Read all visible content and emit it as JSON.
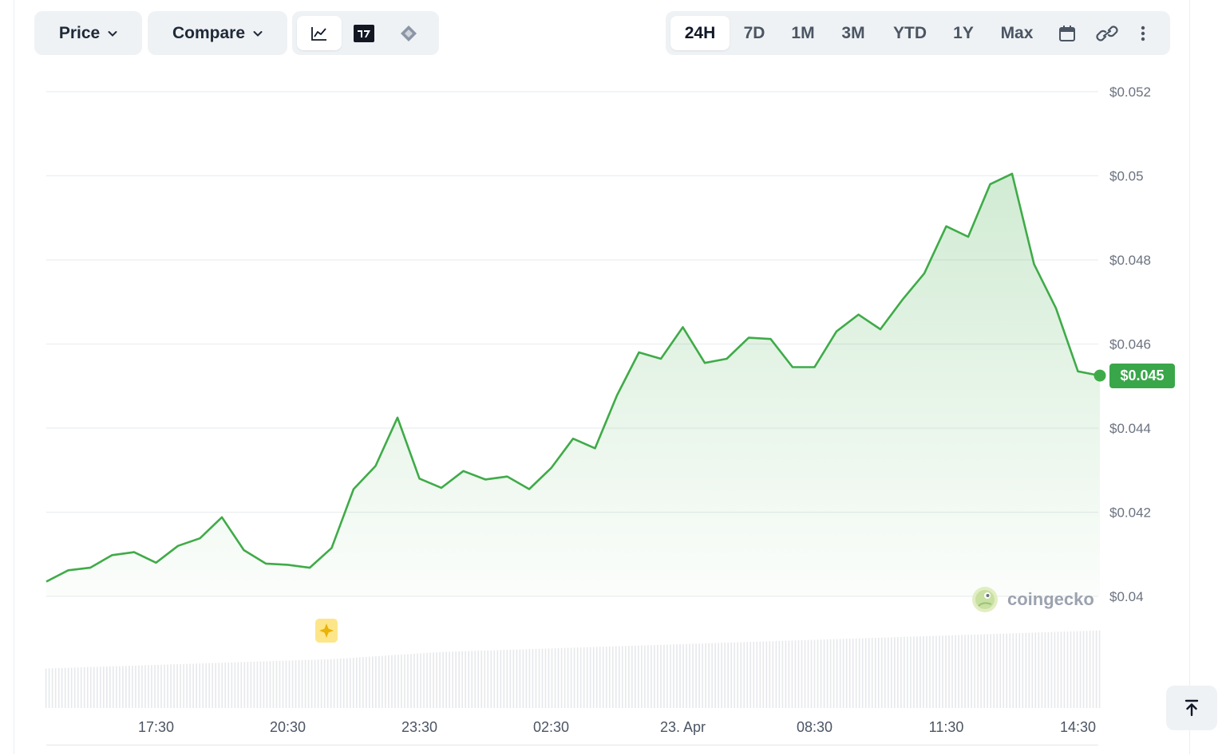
{
  "controls": {
    "price_label": "Price",
    "compare_label": "Compare",
    "ranges": [
      "24H",
      "7D",
      "1M",
      "3M",
      "YTD",
      "1Y",
      "Max"
    ],
    "active_range": "24H"
  },
  "current_price": "$0.045",
  "brand": "coingecko",
  "colors": {
    "line": "#3fab48",
    "badge": "#3aa64a",
    "grid": "#eceef1",
    "volume": "#e6e8eb"
  },
  "icons": {
    "chart_types": [
      "line-chart-icon",
      "tradingview-icon",
      "candlestick-icon"
    ],
    "tools": [
      "calendar-icon",
      "link-icon",
      "more-vertical-icon"
    ],
    "scroll_top": "arrow-up-to-line-icon"
  },
  "chart_data": {
    "type": "area",
    "title": "",
    "xlabel": "",
    "ylabel": "",
    "y_ticks": [
      "$0.04",
      "$0.042",
      "$0.044",
      "$0.046",
      "$0.048",
      "$0.05",
      "$0.052"
    ],
    "x_ticks": [
      "17:30",
      "20:30",
      "23:30",
      "02:30",
      "23. Apr",
      "08:30",
      "11:30",
      "14:30"
    ],
    "ylim": [
      0.04,
      0.052
    ],
    "x_unit": "hours since 15:00 (22 Apr)",
    "x": [
      0,
      0.5,
      1,
      1.5,
      2,
      2.5,
      3,
      3.5,
      4,
      4.5,
      5,
      5.5,
      6,
      6.5,
      7,
      7.5,
      8,
      8.5,
      9,
      9.5,
      10,
      10.5,
      11,
      11.5,
      12,
      12.5,
      13,
      13.5,
      14,
      14.5,
      15,
      15.5,
      16,
      16.5,
      17,
      17.5,
      18,
      18.5,
      19,
      19.5,
      20,
      20.5,
      21,
      21.5,
      22,
      22.5,
      23,
      23.5,
      24
    ],
    "series": [
      {
        "values": [
          0.04035,
          0.04062,
          0.04068,
          0.04098,
          0.04105,
          0.0408,
          0.0412,
          0.04138,
          0.04188,
          0.0411,
          0.04078,
          0.04075,
          0.04068,
          0.04115,
          0.04255,
          0.0431,
          0.04425,
          0.0428,
          0.04258,
          0.04298,
          0.04278,
          0.04285,
          0.04255,
          0.04305,
          0.04375,
          0.04352,
          0.04478,
          0.0458,
          0.04565,
          0.0464,
          0.04555,
          0.04565,
          0.04615,
          0.04612,
          0.04545,
          0.04545,
          0.0463,
          0.0467,
          0.04635,
          0.04705,
          0.04768,
          0.0488,
          0.04855,
          0.0498,
          0.05005,
          0.0479,
          0.04685,
          0.04535,
          0.04525
        ]
      }
    ],
    "volume": [
      0.055,
      0.056,
      0.057,
      0.058,
      0.059,
      0.06,
      0.061,
      0.062,
      0.063,
      0.064,
      0.065,
      0.066,
      0.067,
      0.068,
      0.07,
      0.072,
      0.074,
      0.076,
      0.078,
      0.079,
      0.08,
      0.081,
      0.082,
      0.083,
      0.084,
      0.085,
      0.086,
      0.087,
      0.088,
      0.089,
      0.09,
      0.091,
      0.092,
      0.093,
      0.094,
      0.095,
      0.096,
      0.097,
      0.098,
      0.099,
      0.1,
      0.101,
      0.102,
      0.103,
      0.104,
      0.105,
      0.106,
      0.107,
      0.108
    ]
  }
}
